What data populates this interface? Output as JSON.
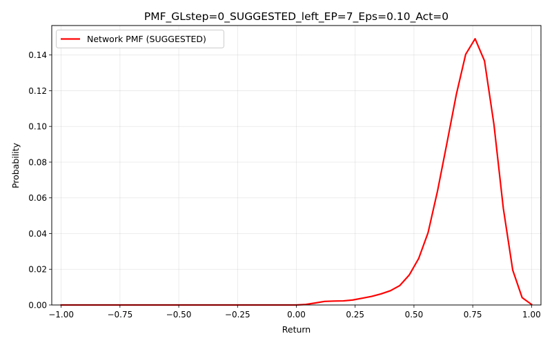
{
  "chart_data": {
    "type": "line",
    "title": "PMF_GLstep=0_SUGGESTED_left_EP=7_Eps=0.10_Act=0",
    "xlabel": "Return",
    "ylabel": "Probability",
    "xlim": [
      -1.04,
      1.04
    ],
    "ylim": [
      0,
      0.1565
    ],
    "x_ticks": [
      -1.0,
      -0.75,
      -0.5,
      -0.25,
      0.0,
      0.25,
      0.5,
      0.75,
      1.0
    ],
    "x_tick_labels": [
      "−1.00",
      "−0.75",
      "−0.50",
      "−0.25",
      "0.00",
      "0.25",
      "0.50",
      "0.75",
      "1.00"
    ],
    "y_ticks": [
      0.0,
      0.02,
      0.04,
      0.06,
      0.08,
      0.1,
      0.12,
      0.14
    ],
    "y_tick_labels": [
      "0.00",
      "0.02",
      "0.04",
      "0.06",
      "0.08",
      "0.10",
      "0.12",
      "0.14"
    ],
    "grid": true,
    "legend_position": "top-left",
    "series": [
      {
        "name": "Network PMF (SUGGESTED)",
        "color": "#ff0000",
        "x": [
          -1.0,
          -0.96,
          -0.92,
          -0.88,
          -0.84,
          -0.8,
          -0.76,
          -0.72,
          -0.68,
          -0.64,
          -0.6,
          -0.56,
          -0.52,
          -0.48,
          -0.44,
          -0.4,
          -0.36,
          -0.32,
          -0.28,
          -0.24,
          -0.2,
          -0.16,
          -0.12,
          -0.08,
          -0.04,
          0.0,
          0.04,
          0.08,
          0.12,
          0.16,
          0.2,
          0.24,
          0.28,
          0.32,
          0.36,
          0.4,
          0.44,
          0.48,
          0.52,
          0.56,
          0.6,
          0.64,
          0.68,
          0.72,
          0.76,
          0.8,
          0.84,
          0.88,
          0.92,
          0.96,
          1.0
        ],
        "y": [
          0.0,
          0.0,
          0.0,
          0.0,
          0.0,
          0.0,
          0.0,
          0.0,
          0.0,
          0.0,
          0.0,
          0.0,
          0.0,
          0.0,
          0.0,
          0.0,
          0.0,
          0.0,
          0.0,
          0.0,
          0.0,
          0.0,
          0.0,
          0.0,
          0.0,
          0.0,
          0.0003,
          0.0011,
          0.002,
          0.0022,
          0.0023,
          0.0028,
          0.0038,
          0.0048,
          0.0062,
          0.008,
          0.0109,
          0.0168,
          0.026,
          0.0405,
          0.0637,
          0.0905,
          0.1178,
          0.1404,
          0.1491,
          0.1367,
          0.1012,
          0.0541,
          0.0195,
          0.0041,
          0.0003
        ]
      }
    ]
  }
}
